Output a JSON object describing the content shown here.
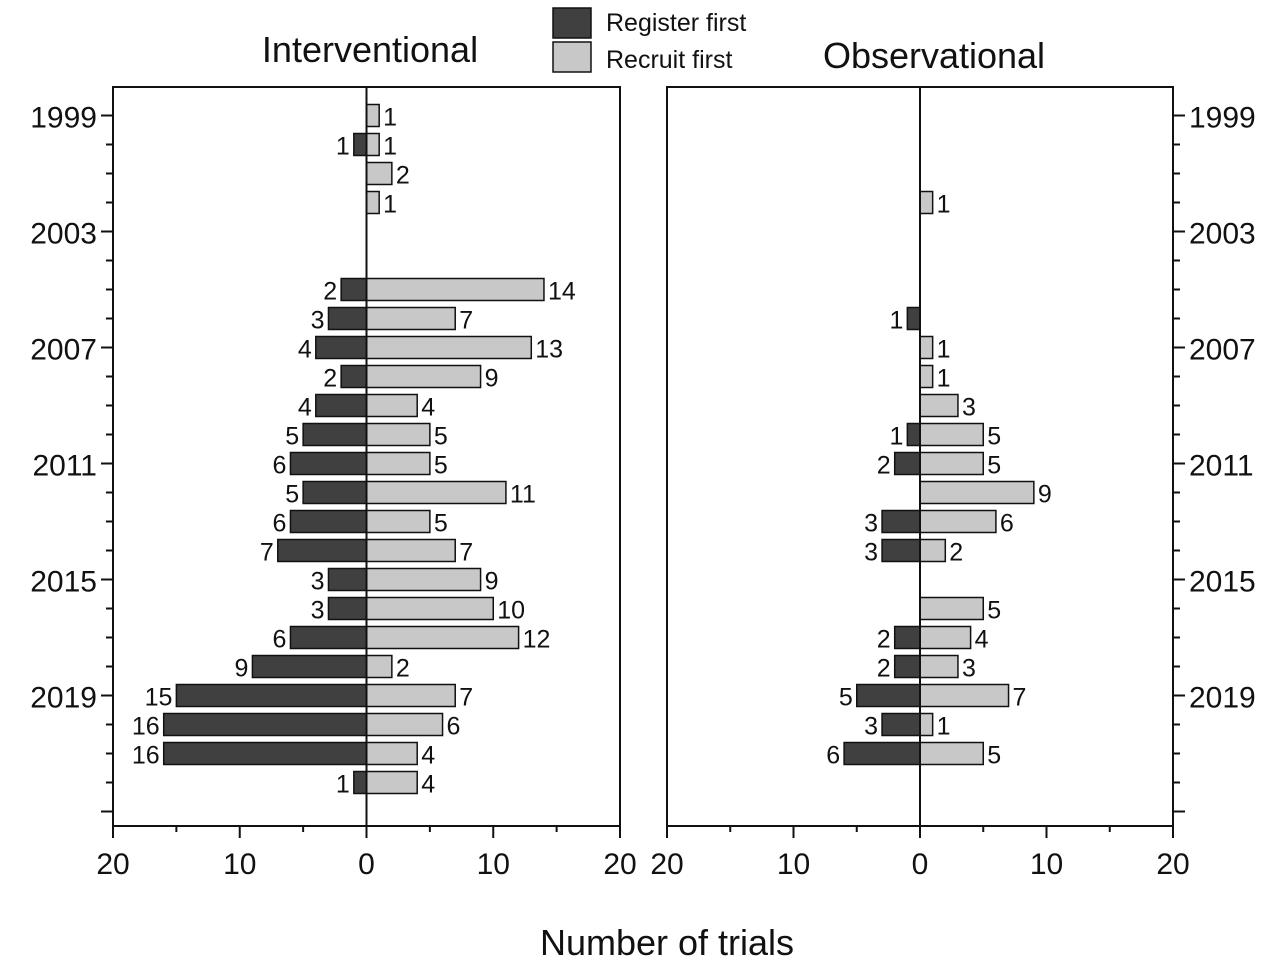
{
  "legend": {
    "position": "top-center",
    "items": [
      {
        "label": "Register first",
        "color": "#404040"
      },
      {
        "label": "Recruit first",
        "color": "#c8c8c8"
      }
    ]
  },
  "x_axis_label": "Number of trials",
  "chart_data": [
    {
      "type": "bar",
      "orientation": "horizontal-diverging",
      "title": "Interventional",
      "xlabel": "Number of trials",
      "xlim": [
        -20,
        20
      ],
      "x_tick_labels": [
        "20",
        "10",
        "0",
        "10",
        "20"
      ],
      "y_tick_labels": [
        "1999",
        "2003",
        "2007",
        "2011",
        "2015",
        "2019"
      ],
      "y_axis_side": "left",
      "categories": [
        "1999",
        "2000",
        "2001",
        "2002",
        "2003",
        "2004",
        "2005",
        "2006",
        "2007",
        "2008",
        "2009",
        "2010",
        "2011",
        "2012",
        "2013",
        "2014",
        "2015",
        "2016",
        "2017",
        "2018",
        "2019",
        "2020",
        "2021",
        "2022"
      ],
      "series": [
        {
          "name": "Register first",
          "direction": "left",
          "color": "#404040",
          "values": [
            0,
            1,
            0,
            0,
            0,
            0,
            2,
            3,
            4,
            2,
            4,
            5,
            6,
            5,
            6,
            7,
            3,
            3,
            6,
            9,
            15,
            16,
            16,
            1
          ]
        },
        {
          "name": "Recruit first",
          "direction": "right",
          "color": "#c8c8c8",
          "values": [
            1,
            1,
            2,
            1,
            0,
            0,
            14,
            7,
            13,
            9,
            4,
            5,
            5,
            11,
            5,
            7,
            9,
            10,
            12,
            2,
            7,
            6,
            4,
            4
          ]
        }
      ]
    },
    {
      "type": "bar",
      "orientation": "horizontal-diverging",
      "title": "Observational",
      "xlabel": "Number of trials",
      "xlim": [
        -20,
        20
      ],
      "x_tick_labels": [
        "20",
        "10",
        "0",
        "10",
        "20"
      ],
      "y_tick_labels": [
        "1999",
        "2003",
        "2007",
        "2011",
        "2015",
        "2019"
      ],
      "y_axis_side": "right",
      "categories": [
        "1999",
        "2000",
        "2001",
        "2002",
        "2003",
        "2004",
        "2005",
        "2006",
        "2007",
        "2008",
        "2009",
        "2010",
        "2011",
        "2012",
        "2013",
        "2014",
        "2015",
        "2016",
        "2017",
        "2018",
        "2019",
        "2020",
        "2021",
        "2022"
      ],
      "series": [
        {
          "name": "Register first",
          "direction": "left",
          "color": "#404040",
          "values": [
            0,
            0,
            0,
            0,
            0,
            0,
            0,
            1,
            0,
            0,
            0,
            1,
            2,
            0,
            3,
            3,
            0,
            0,
            2,
            2,
            5,
            3,
            6,
            0
          ]
        },
        {
          "name": "Recruit first",
          "direction": "right",
          "color": "#c8c8c8",
          "values": [
            0,
            0,
            0,
            1,
            0,
            0,
            0,
            0,
            1,
            1,
            3,
            5,
            5,
            9,
            6,
            2,
            0,
            5,
            4,
            3,
            7,
            1,
            5,
            0
          ]
        }
      ]
    }
  ]
}
